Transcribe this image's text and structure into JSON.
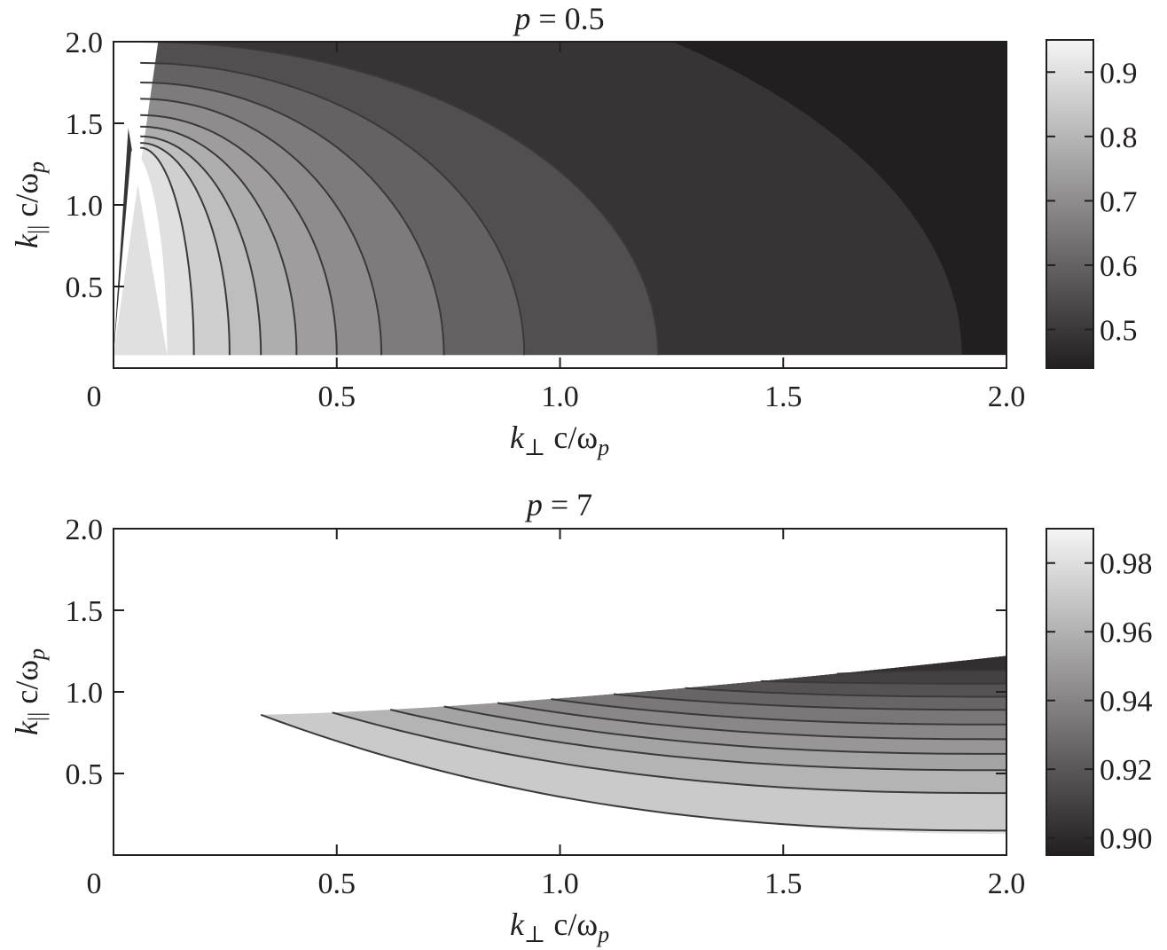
{
  "chart_data": [
    {
      "type": "heatmap",
      "title_var": "p",
      "title_eq": " = 0.5",
      "xlabel_k": "k",
      "xlabel_sub": "⊥",
      "xlabel_rest": " c/ω",
      "xlabel_subp": "p",
      "ylabel_k": "k",
      "ylabel_sub": "||",
      "ylabel_rest": " c/ω",
      "ylabel_subp": "p",
      "xlim": [
        0,
        2.0
      ],
      "ylim": [
        0,
        2.0
      ],
      "xticks": [
        0,
        0.5,
        1.0,
        1.5,
        2.0
      ],
      "xtick_labels": [
        "0",
        "0.5",
        "1.0",
        "1.5",
        "2.0"
      ],
      "yticks": [
        0.5,
        1.0,
        1.5,
        2.0
      ],
      "ytick_labels": [
        "0.5",
        "1.0",
        "1.5",
        "2.0"
      ],
      "colorbar": {
        "range": [
          0.44,
          0.95
        ],
        "ticks": [
          0.5,
          0.6,
          0.7,
          0.8,
          0.9
        ],
        "tick_labels": [
          "0.5",
          "0.6",
          "0.7",
          "0.8",
          "0.9"
        ],
        "colors": [
          "#231f20",
          "#f5f5f5"
        ]
      },
      "contour_levels": [
        0.88,
        0.84,
        0.8,
        0.76,
        0.72,
        0.68,
        0.64,
        0.58,
        0.52
      ],
      "contour_k_perp_at_low": [
        0.18,
        0.26,
        0.33,
        0.41,
        0.5,
        0.6,
        0.74,
        0.92,
        1.22
      ],
      "contour_k_par_top": [
        1.35,
        1.38,
        1.42,
        1.48,
        1.55,
        1.65,
        1.75,
        1.87,
        2.0
      ],
      "data_region": {
        "k_par_min": 0.08,
        "k_par_max": 2.0,
        "k_perp_max": 2.0
      },
      "outer_band": {
        "value": 0.44,
        "k_perp_at_low": 1.9,
        "k_par_edge": 1.55
      }
    },
    {
      "type": "heatmap",
      "title_var": "p",
      "title_eq": " = 7",
      "xlabel_k": "k",
      "xlabel_sub": "⊥",
      "xlabel_rest": " c/ω",
      "xlabel_subp": "p",
      "ylabel_k": "k",
      "ylabel_sub": "||",
      "ylabel_rest": " c/ω",
      "ylabel_subp": "p",
      "xlim": [
        0,
        2.0
      ],
      "ylim": [
        0,
        2.0
      ],
      "xticks": [
        0,
        0.5,
        1.0,
        1.5,
        2.0
      ],
      "xtick_labels": [
        "0",
        "0.5",
        "1.0",
        "1.5",
        "2.0"
      ],
      "yticks": [
        0.5,
        1.0,
        1.5,
        2.0
      ],
      "ytick_labels": [
        "0.5",
        "1.0",
        "1.5",
        "2.0"
      ],
      "colorbar": {
        "range": [
          0.895,
          0.99
        ],
        "ticks": [
          0.9,
          0.92,
          0.94,
          0.96,
          0.98
        ],
        "tick_labels": [
          "0.90",
          "0.92",
          "0.94",
          "0.96",
          "0.98"
        ],
        "colors": [
          "#231f20",
          "#f5f5f5"
        ]
      },
      "contour_levels": [
        0.975,
        0.965,
        0.958,
        0.952,
        0.945,
        0.938,
        0.93,
        0.922,
        0.914,
        0.906
      ],
      "contour_start_k_perp": [
        0.33,
        0.49,
        0.62,
        0.74,
        0.86,
        0.98,
        1.12,
        1.28,
        1.45,
        1.62
      ],
      "contour_end_k_par": [
        0.15,
        0.38,
        0.52,
        0.62,
        0.71,
        0.8,
        0.89,
        0.97,
        1.05,
        1.13
      ],
      "data_region": {
        "k_perp_start": 0.33,
        "k_par_at_start": 0.86,
        "k_par_upper_end": 1.22,
        "k_par_lower_end": 0.13
      }
    }
  ]
}
